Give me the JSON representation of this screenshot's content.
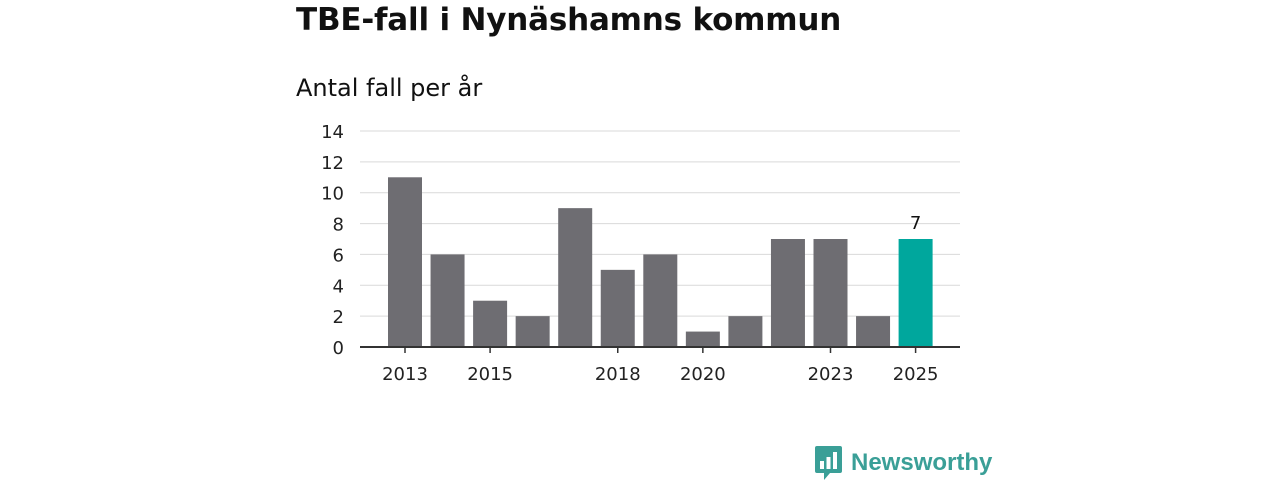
{
  "header": {
    "title": "TBE-fall i Nynäshamns kommun",
    "subtitle": "Antal fall per år"
  },
  "brand": {
    "name": "Newsworthy"
  },
  "colors": {
    "bar": "#6e6d72",
    "highlight": "#00a79d",
    "brand": "#3a9f97",
    "grid": "#d9d9d9",
    "axis": "#333333"
  },
  "chart_data": {
    "type": "bar",
    "title": "TBE-fall i Nynäshamns kommun",
    "subtitle": "Antal fall per år",
    "categories": [
      "2013",
      "2014",
      "2015",
      "2016",
      "2017",
      "2018",
      "2019",
      "2020",
      "2021",
      "2022",
      "2023",
      "2024",
      "2025"
    ],
    "values": [
      11,
      6,
      3,
      2,
      9,
      5,
      6,
      1,
      2,
      7,
      7,
      2,
      7
    ],
    "x_tick_labels": [
      "2013",
      "2015",
      "2018",
      "2020",
      "2023",
      "2025"
    ],
    "y_ticks": [
      0,
      2,
      4,
      6,
      8,
      10,
      12,
      14
    ],
    "ylim": [
      0,
      14
    ],
    "grid": true,
    "highlight_category": "2025",
    "data_labels": [
      {
        "category": "2025",
        "text": "7"
      }
    ],
    "xlabel": "",
    "ylabel": ""
  }
}
